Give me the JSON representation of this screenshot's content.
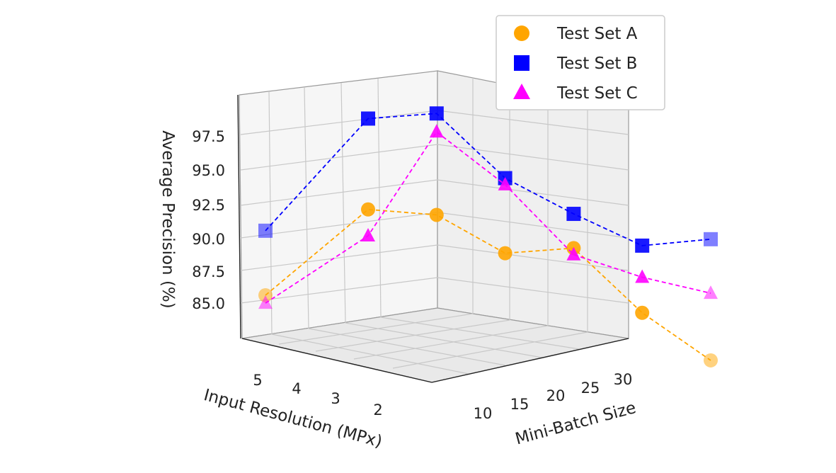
{
  "chart_data": {
    "type": "scatter",
    "projection": "3d",
    "xlabel": "Input Resolution (MPx)",
    "ylabel": "Mini-Batch Size",
    "zlabel": "Average Precision (%)",
    "x_ticks": [
      "5",
      "4",
      "3",
      "2"
    ],
    "y_ticks": [
      "10",
      "15",
      "20",
      "25",
      "30"
    ],
    "z_ticks": [
      "85.0",
      "87.5",
      "90.0",
      "92.5",
      "95.0",
      "97.5"
    ],
    "grid": true,
    "legend_position": "top-right",
    "series": [
      {
        "name": "Test Set A",
        "marker": "circle",
        "color": "#ffa500",
        "points": [
          {
            "resolution": 5,
            "batch": 2,
            "precision": 85.7
          },
          {
            "resolution": 2,
            "batch": 2,
            "precision": 92.0
          },
          {
            "resolution": 2,
            "batch": 10,
            "precision": 92.1
          },
          {
            "resolution": 2,
            "batch": 18,
            "precision": 89.7
          },
          {
            "resolution": 2,
            "batch": 26,
            "precision": 90.6
          },
          {
            "resolution": 2,
            "batch": 34,
            "precision": 86.2
          },
          {
            "resolution": 2,
            "batch": 42,
            "precision": 83.1
          }
        ]
      },
      {
        "name": "Test Set B",
        "marker": "square",
        "color": "#0000ff",
        "points": [
          {
            "resolution": 5,
            "batch": 2,
            "precision": 90.6
          },
          {
            "resolution": 2,
            "batch": 2,
            "precision": 98.9
          },
          {
            "resolution": 2,
            "batch": 10,
            "precision": 99.8
          },
          {
            "resolution": 2,
            "batch": 18,
            "precision": 95.4
          },
          {
            "resolution": 2,
            "batch": 26,
            "precision": 93.2
          },
          {
            "resolution": 2,
            "batch": 34,
            "precision": 91.3
          },
          {
            "resolution": 2,
            "batch": 42,
            "precision": 92.3
          }
        ]
      },
      {
        "name": "Test Set C",
        "marker": "triangle",
        "color": "#ff00ff",
        "points": [
          {
            "resolution": 5,
            "batch": 2,
            "precision": 85.1
          },
          {
            "resolution": 2,
            "batch": 2,
            "precision": 90.0
          },
          {
            "resolution": 2,
            "batch": 10,
            "precision": 98.4
          },
          {
            "resolution": 2,
            "batch": 18,
            "precision": 94.9
          },
          {
            "resolution": 2,
            "batch": 26,
            "precision": 90.1
          },
          {
            "resolution": 2,
            "batch": 34,
            "precision": 88.9
          },
          {
            "resolution": 2,
            "batch": 42,
            "precision": 88.2
          }
        ]
      }
    ]
  }
}
